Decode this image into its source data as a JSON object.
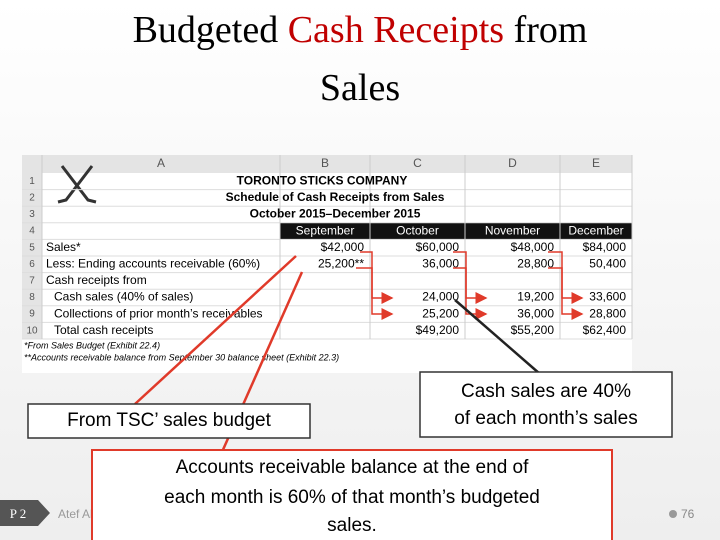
{
  "title": {
    "prefix": "Budgeted",
    "highlight": "Cash Receipts",
    "suffix": "from",
    "line2": "Sales"
  },
  "spreadsheet": {
    "column_headers": [
      "A",
      "B",
      "C",
      "D",
      "E"
    ],
    "row_numbers": [
      "1",
      "2",
      "3",
      "4",
      "5",
      "6",
      "7",
      "8",
      "9",
      "10"
    ],
    "company": "TORONTO STICKS COMPANY",
    "schedule": "Schedule of Cash Receipts from Sales",
    "period": "October 2015–December 2015",
    "months": [
      "September",
      "October",
      "November",
      "December"
    ],
    "rows": [
      {
        "label": "Sales*",
        "sep": "$42,000",
        "oct": "$60,000",
        "nov": "$48,000",
        "dec": "$84,000"
      },
      {
        "label": "Less: Ending accounts receivable (60%)",
        "sep": "25,200**",
        "oct": "36,000",
        "nov": "28,800",
        "dec": "50,400"
      },
      {
        "label": "Cash receipts from"
      },
      {
        "label": "Cash sales (40% of sales)",
        "oct": "24,000",
        "nov": "19,200",
        "dec": "33,600"
      },
      {
        "label": "Collections of prior month’s receivables",
        "oct": "25,200",
        "nov": "36,000",
        "dec": "28,800"
      },
      {
        "label": "Total cash receipts",
        "oct": "$49,200",
        "nov": "$55,200",
        "dec": "$62,400"
      }
    ],
    "footnotes": [
      "*From Sales Budget (Exhibit 22.4)",
      "**Accounts receivable balance from September 30 balance sheet (Exhibit 22.3)"
    ]
  },
  "callouts": {
    "sales_budget": "From TSC’ sales budget",
    "cash_sales": [
      "Cash sales are 40%",
      "of each month’s sales"
    ],
    "receivable": [
      "Accounts receivable balance at the end of",
      "each month is 60% of that month’s budgeted",
      "sales."
    ]
  },
  "footer": {
    "section": "P 2",
    "author": "Atef Abuelaish",
    "page": "76"
  }
}
